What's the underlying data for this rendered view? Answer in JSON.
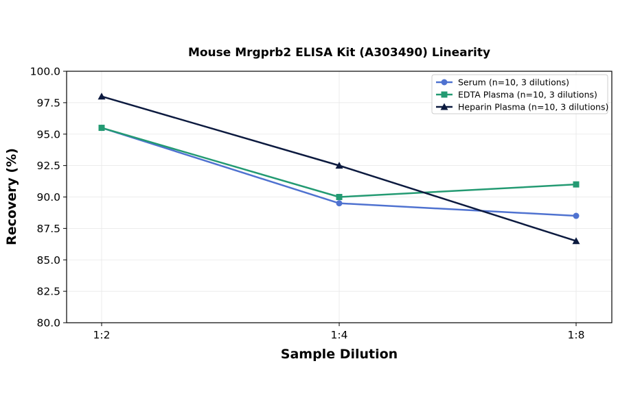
{
  "chart_data": {
    "type": "line",
    "title": "Mouse Mrgprb2 ELISA Kit (A303490) Linearity",
    "xlabel": "Sample Dilution",
    "ylabel": "Recovery (%)",
    "categories": [
      "1:2",
      "1:4",
      "1:8"
    ],
    "ylim": [
      80.0,
      100.0
    ],
    "yticks": [
      "80.0",
      "82.5",
      "85.0",
      "87.5",
      "90.0",
      "92.5",
      "95.0",
      "97.5",
      "100.0"
    ],
    "grid": true,
    "legend_position": "top-right",
    "series": [
      {
        "name": "Serum (n=10, 3 dilutions)",
        "values": [
          95.5,
          89.5,
          88.5
        ],
        "color": "#4f72d0",
        "marker": "circle"
      },
      {
        "name": "EDTA Plasma (n=10, 3 dilutions)",
        "values": [
          95.5,
          90.0,
          91.0
        ],
        "color": "#239a72",
        "marker": "square"
      },
      {
        "name": "Heparin Plasma (n=10, 3 dilutions)",
        "values": [
          98.0,
          92.5,
          86.5
        ],
        "color": "#0c1a3f",
        "marker": "triangle"
      }
    ]
  }
}
